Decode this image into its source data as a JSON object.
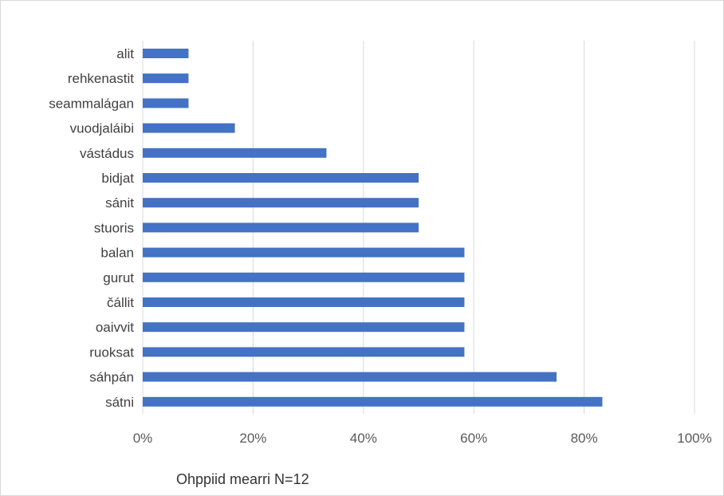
{
  "note": "Ohppiid mearri N=12",
  "chart_data": {
    "type": "bar",
    "orientation": "horizontal",
    "categories": [
      "alit",
      "rehkenastit",
      "seammalágan",
      "vuodjaláibi",
      "vástádus",
      "bidjat",
      "sánit",
      "stuoris",
      "balan",
      "gurut",
      "čállit",
      "oaivvit",
      "ruoksat",
      "sáhpán",
      "sátni"
    ],
    "values": [
      8.3,
      8.3,
      8.3,
      16.7,
      33.3,
      50,
      50,
      50,
      58.3,
      58.3,
      58.3,
      58.3,
      58.3,
      75,
      83.3
    ],
    "x_ticks": [
      "0%",
      "20%",
      "40%",
      "60%",
      "80%",
      "100%"
    ],
    "xlim": [
      0,
      100
    ],
    "grid": true,
    "bar_color": "#4472c4",
    "grid_color": "#d9d9d9"
  }
}
